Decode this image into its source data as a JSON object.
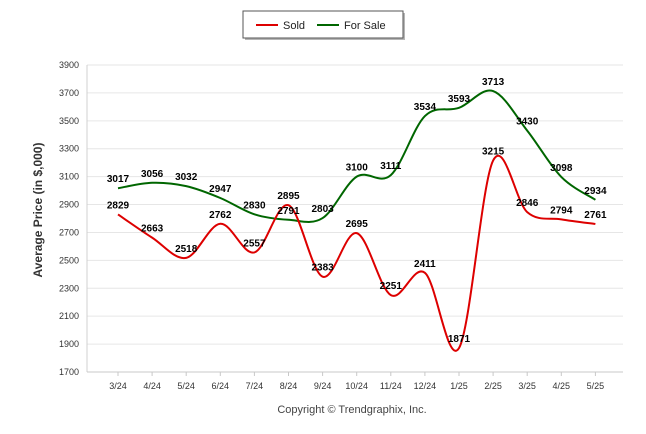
{
  "chart_data": {
    "type": "line",
    "title": "",
    "xlabel": "",
    "ylabel": "Average Price (in $,000)",
    "credit": "Copyright © Trendgraphix, Inc.",
    "ylim": [
      1700,
      3900
    ],
    "yticks": [
      "1700",
      "1900",
      "2100",
      "2300",
      "2500",
      "2700",
      "2900",
      "3100",
      "3300",
      "3500",
      "3700",
      "3900"
    ],
    "grid": true,
    "legend_position": "top-center",
    "categories": [
      "3/24",
      "4/24",
      "5/24",
      "6/24",
      "7/24",
      "8/24",
      "9/24",
      "10/24",
      "11/24",
      "12/24",
      "1/25",
      "2/25",
      "3/25",
      "4/25",
      "5/25"
    ],
    "series": [
      {
        "name": "Sold",
        "color": "#dd0000",
        "values": [
          2829,
          2663,
          2518,
          2762,
          2557,
          2895,
          2383,
          2695,
          2251,
          2411,
          1871,
          3215,
          2846,
          2794,
          2761
        ],
        "labels": [
          "2829",
          "2663",
          "2518",
          "2762",
          "2557",
          "2895",
          "2383",
          "2695",
          "2251",
          "2411",
          "1871",
          "3215",
          "2846",
          "2794",
          "2761"
        ]
      },
      {
        "name": "For Sale",
        "color": "#006600",
        "values": [
          3017,
          3056,
          3032,
          2947,
          2830,
          2791,
          2803,
          3100,
          3111,
          3534,
          3593,
          3713,
          3430,
          3098,
          2934
        ],
        "labels": [
          "3017",
          "3056",
          "3032",
          "2947",
          "2830",
          "2791",
          "2803",
          "3100",
          "3111",
          "3534",
          "3593",
          "3713",
          "3430",
          "3098",
          "2934"
        ]
      }
    ]
  }
}
